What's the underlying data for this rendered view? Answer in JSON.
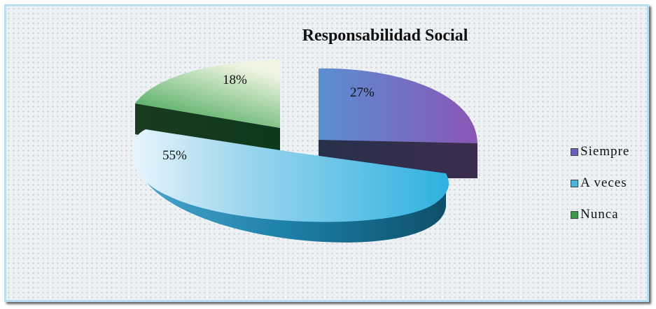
{
  "chart_data": {
    "type": "pie",
    "title": "Responsabilidad Social",
    "categories": [
      "Siempre",
      "A veces",
      "Nunca"
    ],
    "values": [
      27,
      55,
      18
    ],
    "labels": [
      "27%",
      "55%",
      "18%"
    ],
    "colors": [
      "#6a60b8",
      "#4cb4da",
      "#3a9a4a"
    ],
    "legend_position": "right",
    "exploded": true,
    "three_d": true
  }
}
